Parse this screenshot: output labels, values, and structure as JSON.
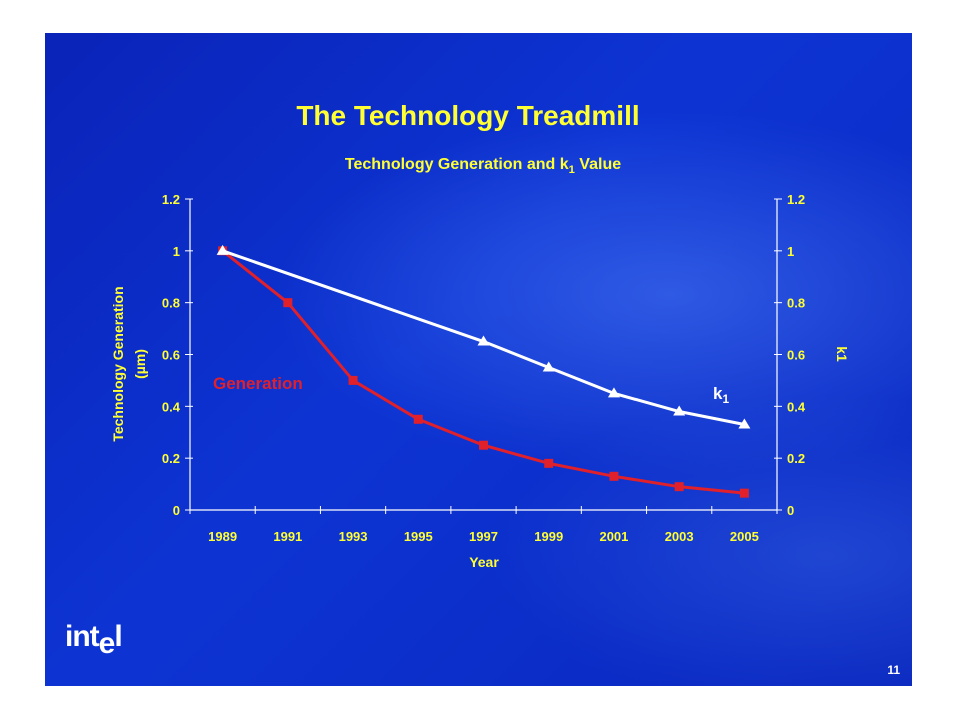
{
  "slide": {
    "logo": "intel",
    "logo_parts": [
      "int",
      "e",
      "l"
    ],
    "page_number": "11"
  },
  "chart_data": {
    "type": "line",
    "title": "The Technology Treadmill",
    "subtitle": "Technology Generation and k1 Value",
    "xlabel": "Year",
    "ylabel_left": "Technology Generation",
    "ylabel_left_unit": "(µm)",
    "ylabel_right": "k1",
    "categories": [
      "1989",
      "1991",
      "1993",
      "1995",
      "1997",
      "1999",
      "2001",
      "2003",
      "2005"
    ],
    "ylim": [
      0,
      1.2
    ],
    "yticks": [
      "0",
      "0.2",
      "0.4",
      "0.6",
      "0.8",
      "1",
      "1.2"
    ],
    "grid": false,
    "series": [
      {
        "name": "Generation",
        "axis": "left",
        "marker": "square",
        "color": "#e0202a",
        "x": [
          "1989",
          "1991",
          "1993",
          "1995",
          "1997",
          "1999",
          "2001",
          "2003",
          "2005"
        ],
        "values": [
          1.0,
          0.8,
          0.5,
          0.35,
          0.25,
          0.18,
          0.13,
          0.09,
          0.065
        ]
      },
      {
        "name": "k1",
        "axis": "right",
        "marker": "triangle",
        "color": "#ffffff",
        "x": [
          "1989",
          "1997",
          "1999",
          "2001",
          "2003",
          "2005"
        ],
        "values": [
          1.0,
          0.65,
          0.55,
          0.45,
          0.38,
          0.33
        ]
      }
    ]
  },
  "colors": {
    "text_yellow": "#ffff33",
    "axis_white": "#ffffff",
    "generation_red": "#e0202a",
    "k1_white": "#ffffff"
  }
}
